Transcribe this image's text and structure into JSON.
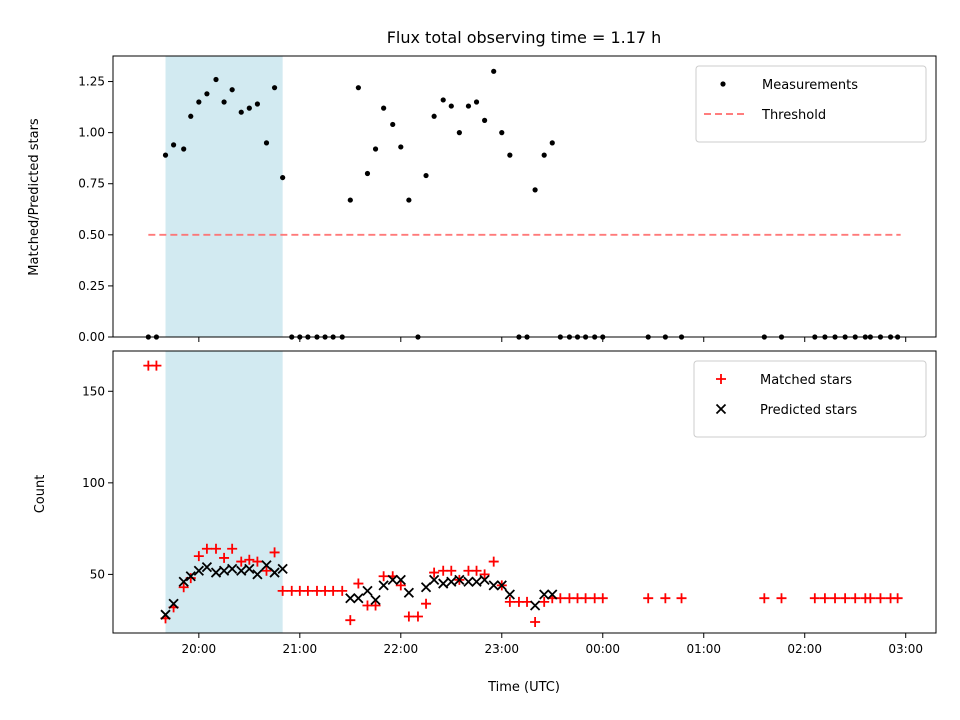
{
  "chart_data": [
    {
      "type": "scatter",
      "title": "Flux total observing time = 1.17 h",
      "xlabel": "",
      "ylabel": "Matched/Predicted stars",
      "x_unit": "hours since 00:00 UTC",
      "xlim": [
        -4.85,
        3.3
      ],
      "ylim": [
        0,
        1.375
      ],
      "yticks": [
        "0.00",
        "0.25",
        "0.50",
        "0.75",
        "1.00",
        "1.25"
      ],
      "shaded_span": [
        -4.33,
        -3.17
      ],
      "shade_color": "#add8e6",
      "legend": {
        "placement": "top-right",
        "entries": [
          "Measurements",
          "Threshold"
        ]
      },
      "series": [
        {
          "name": "Measurements",
          "kind": "points",
          "color": "#000000",
          "points": [
            [
              -4.5,
              0
            ],
            [
              -4.42,
              0
            ],
            [
              -4.33,
              0.89
            ],
            [
              -4.25,
              0.94
            ],
            [
              -4.15,
              0.92
            ],
            [
              -4.08,
              1.08
            ],
            [
              -4.0,
              1.15
            ],
            [
              -3.92,
              1.19
            ],
            [
              -3.83,
              1.26
            ],
            [
              -3.75,
              1.15
            ],
            [
              -3.67,
              1.21
            ],
            [
              -3.58,
              1.1
            ],
            [
              -3.5,
              1.12
            ],
            [
              -3.42,
              1.14
            ],
            [
              -3.33,
              0.95
            ],
            [
              -3.25,
              1.22
            ],
            [
              -3.17,
              0.78
            ],
            [
              -3.08,
              0
            ],
            [
              -3.0,
              0
            ],
            [
              -2.92,
              0
            ],
            [
              -2.83,
              0
            ],
            [
              -2.75,
              0
            ],
            [
              -2.67,
              0
            ],
            [
              -2.58,
              0
            ],
            [
              -2.5,
              0.67
            ],
            [
              -2.42,
              1.22
            ],
            [
              -2.33,
              0.8
            ],
            [
              -2.25,
              0.92
            ],
            [
              -2.17,
              1.12
            ],
            [
              -2.08,
              1.04
            ],
            [
              -2.0,
              0.93
            ],
            [
              -1.92,
              0.67
            ],
            [
              -1.83,
              0
            ],
            [
              -1.75,
              0.79
            ],
            [
              -1.67,
              1.08
            ],
            [
              -1.58,
              1.16
            ],
            [
              -1.5,
              1.13
            ],
            [
              -1.42,
              1.0
            ],
            [
              -1.33,
              1.13
            ],
            [
              -1.25,
              1.15
            ],
            [
              -1.17,
              1.06
            ],
            [
              -1.08,
              1.3
            ],
            [
              -1.0,
              1.0
            ],
            [
              -0.92,
              0.89
            ],
            [
              -0.83,
              0
            ],
            [
              -0.75,
              0
            ],
            [
              -0.67,
              0.72
            ],
            [
              -0.58,
              0.89
            ],
            [
              -0.5,
              0.95
            ],
            [
              -0.42,
              0
            ],
            [
              -0.33,
              0
            ],
            [
              -0.25,
              0
            ],
            [
              -0.17,
              0
            ],
            [
              -0.08,
              0
            ],
            [
              0.0,
              0
            ],
            [
              0.45,
              0
            ],
            [
              0.62,
              0
            ],
            [
              0.78,
              0
            ],
            [
              1.6,
              0
            ],
            [
              1.77,
              0
            ],
            [
              2.1,
              0
            ],
            [
              2.2,
              0
            ],
            [
              2.3,
              0
            ],
            [
              2.4,
              0
            ],
            [
              2.5,
              0
            ],
            [
              2.6,
              0
            ],
            [
              2.65,
              0
            ],
            [
              2.75,
              0
            ],
            [
              2.85,
              0
            ],
            [
              2.92,
              0
            ]
          ]
        },
        {
          "name": "Threshold",
          "kind": "dashed-line",
          "color": "#ff6b6b",
          "points": [
            [
              -4.5,
              0.5
            ],
            [
              2.95,
              0.5
            ]
          ]
        }
      ]
    },
    {
      "type": "scatter",
      "title": "",
      "xlabel": "Time (UTC)",
      "ylabel": "Count",
      "x_unit": "hours since 00:00 UTC",
      "xlim": [
        -4.85,
        3.3
      ],
      "ylim": [
        18,
        172
      ],
      "yticks": [
        "50",
        "100",
        "150"
      ],
      "xticks": [
        {
          "x": -4,
          "label": "20:00"
        },
        {
          "x": -3,
          "label": "21:00"
        },
        {
          "x": -2,
          "label": "22:00"
        },
        {
          "x": -1,
          "label": "23:00"
        },
        {
          "x": 0,
          "label": "00:00"
        },
        {
          "x": 1,
          "label": "01:00"
        },
        {
          "x": 2,
          "label": "02:00"
        },
        {
          "x": 3,
          "label": "03:00"
        }
      ],
      "shaded_span": [
        -4.33,
        -3.17
      ],
      "shade_color": "#add8e6",
      "legend": {
        "placement": "top-right",
        "entries": [
          "Matched stars",
          "Predicted stars"
        ]
      },
      "series": [
        {
          "name": "Matched stars",
          "kind": "plus",
          "color": "#ff0000",
          "points": [
            [
              -4.5,
              164
            ],
            [
              -4.42,
              164
            ],
            [
              -4.33,
              26
            ],
            [
              -4.25,
              32
            ],
            [
              -4.15,
              43
            ],
            [
              -4.08,
              48
            ],
            [
              -4.0,
              60
            ],
            [
              -3.92,
              64
            ],
            [
              -3.83,
              64
            ],
            [
              -3.75,
              59
            ],
            [
              -3.67,
              64
            ],
            [
              -3.58,
              57
            ],
            [
              -3.5,
              58
            ],
            [
              -3.42,
              57
            ],
            [
              -3.33,
              52
            ],
            [
              -3.25,
              62
            ],
            [
              -3.17,
              41
            ],
            [
              -3.08,
              41
            ],
            [
              -3.0,
              41
            ],
            [
              -2.92,
              41
            ],
            [
              -2.83,
              41
            ],
            [
              -2.75,
              41
            ],
            [
              -2.67,
              41
            ],
            [
              -2.58,
              41
            ],
            [
              -2.5,
              25
            ],
            [
              -2.42,
              45
            ],
            [
              -2.33,
              33
            ],
            [
              -2.25,
              33
            ],
            [
              -2.17,
              49
            ],
            [
              -2.08,
              49
            ],
            [
              -2.0,
              44
            ],
            [
              -1.92,
              27
            ],
            [
              -1.83,
              27
            ],
            [
              -1.75,
              34
            ],
            [
              -1.67,
              51
            ],
            [
              -1.58,
              52
            ],
            [
              -1.5,
              52
            ],
            [
              -1.42,
              47
            ],
            [
              -1.33,
              52
            ],
            [
              -1.25,
              52
            ],
            [
              -1.17,
              50
            ],
            [
              -1.08,
              57
            ],
            [
              -1.0,
              44
            ],
            [
              -0.92,
              35
            ],
            [
              -0.83,
              35
            ],
            [
              -0.75,
              35
            ],
            [
              -0.67,
              24
            ],
            [
              -0.58,
              35
            ],
            [
              -0.5,
              37
            ],
            [
              -0.42,
              37
            ],
            [
              -0.33,
              37
            ],
            [
              -0.25,
              37
            ],
            [
              -0.17,
              37
            ],
            [
              -0.08,
              37
            ],
            [
              0.0,
              37
            ],
            [
              0.45,
              37
            ],
            [
              0.62,
              37
            ],
            [
              0.78,
              37
            ],
            [
              1.6,
              37
            ],
            [
              1.77,
              37
            ],
            [
              2.1,
              37
            ],
            [
              2.2,
              37
            ],
            [
              2.3,
              37
            ],
            [
              2.4,
              37
            ],
            [
              2.5,
              37
            ],
            [
              2.6,
              37
            ],
            [
              2.65,
              37
            ],
            [
              2.75,
              37
            ],
            [
              2.85,
              37
            ],
            [
              2.92,
              37
            ]
          ]
        },
        {
          "name": "Predicted stars",
          "kind": "x",
          "color": "#000000",
          "points": [
            [
              -4.33,
              28
            ],
            [
              -4.25,
              34
            ],
            [
              -4.15,
              46
            ],
            [
              -4.08,
              49
            ],
            [
              -4.0,
              52
            ],
            [
              -3.92,
              54
            ],
            [
              -3.83,
              51
            ],
            [
              -3.75,
              52
            ],
            [
              -3.67,
              53
            ],
            [
              -3.58,
              52
            ],
            [
              -3.5,
              53
            ],
            [
              -3.42,
              50
            ],
            [
              -3.33,
              55
            ],
            [
              -3.25,
              51
            ],
            [
              -3.17,
              53
            ],
            [
              -2.5,
              37
            ],
            [
              -2.42,
              37
            ],
            [
              -2.33,
              41
            ],
            [
              -2.25,
              36
            ],
            [
              -2.17,
              44
            ],
            [
              -2.08,
              47
            ],
            [
              -2.0,
              47
            ],
            [
              -1.92,
              40
            ],
            [
              -1.75,
              43
            ],
            [
              -1.67,
              47
            ],
            [
              -1.58,
              45
            ],
            [
              -1.5,
              46
            ],
            [
              -1.42,
              47
            ],
            [
              -1.33,
              46
            ],
            [
              -1.25,
              46
            ],
            [
              -1.17,
              47
            ],
            [
              -1.08,
              44
            ],
            [
              -1.0,
              44
            ],
            [
              -0.92,
              39
            ],
            [
              -0.67,
              33
            ],
            [
              -0.58,
              39
            ],
            [
              -0.5,
              39
            ]
          ]
        }
      ]
    }
  ]
}
